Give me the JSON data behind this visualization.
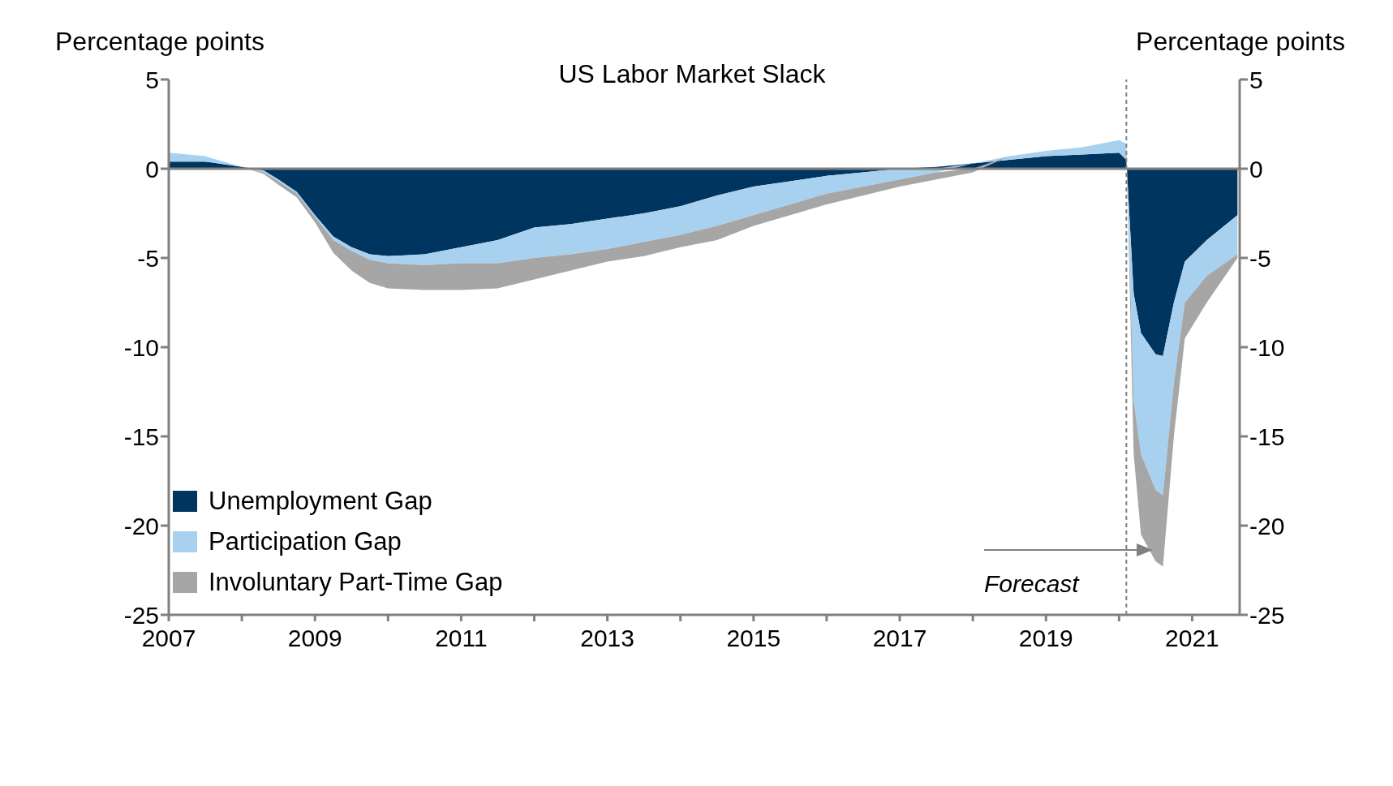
{
  "chart_data": {
    "type": "area",
    "title": "US Labor Market Slack",
    "ylabel": "Percentage points",
    "y2label": "Percentage points",
    "x": [
      2007,
      2007.5,
      2008,
      2008.3,
      2008.5,
      2008.75,
      2009,
      2009.25,
      2009.5,
      2009.75,
      2010,
      2010.5,
      2011,
      2011.5,
      2012,
      2012.5,
      2013,
      2013.5,
      2014,
      2014.5,
      2015,
      2015.5,
      2016,
      2016.5,
      2017,
      2017.5,
      2018,
      2018.5,
      2019,
      2019.5,
      2020,
      2020.1,
      2020.2,
      2020.3,
      2020.5,
      2020.6,
      2020.75,
      2020.9,
      2021.2,
      2021.62
    ],
    "series": [
      {
        "name": "Unemployment Gap",
        "color": "#003560",
        "values": [
          0.4,
          0.4,
          0.1,
          -0.1,
          -0.6,
          -1.3,
          -2.6,
          -3.8,
          -4.4,
          -4.8,
          -4.9,
          -4.8,
          -4.4,
          -4.0,
          -3.3,
          -3.1,
          -2.8,
          -2.5,
          -2.1,
          -1.5,
          -1.0,
          -0.7,
          -0.4,
          -0.2,
          0,
          0.1,
          0.3,
          0.5,
          0.7,
          0.8,
          0.9,
          0.5,
          -7,
          -9.2,
          -10.4,
          -10.5,
          -7.5,
          -5.2,
          -4,
          -2.6
        ]
      },
      {
        "name": "Participation Gap",
        "color": "#a8d1f0",
        "values": [
          0.5,
          0.3,
          0,
          -0.1,
          -0.1,
          -0.1,
          -0.1,
          -0.2,
          -0.2,
          -0.3,
          -0.4,
          -0.6,
          -0.9,
          -1.3,
          -1.7,
          -1.7,
          -1.7,
          -1.6,
          -1.6,
          -1.7,
          -1.6,
          -1.3,
          -1.0,
          -0.8,
          -0.6,
          -0.2,
          0,
          0.2,
          0.3,
          0.4,
          0.7,
          0.9,
          -6,
          -6.8,
          -7.6,
          -7.8,
          -4.5,
          -2.3,
          -2,
          -2.2
        ]
      },
      {
        "name": "Involuntary Part-Time Gap",
        "color": "#a6a6a6",
        "values": [
          0,
          0,
          0,
          -0.1,
          -0.2,
          -0.2,
          -0.3,
          -0.7,
          -1.1,
          -1.3,
          -1.4,
          -1.4,
          -1.5,
          -1.4,
          -1.2,
          -0.9,
          -0.7,
          -0.8,
          -0.7,
          -0.8,
          -0.6,
          -0.6,
          -0.6,
          -0.5,
          -0.4,
          -0.4,
          -0.2,
          0,
          0,
          0,
          0,
          0,
          -3,
          -4.5,
          -4,
          -4,
          -3,
          -2,
          -1.5,
          -0.2
        ]
      }
    ],
    "stacked": true,
    "xlim": [
      2007,
      2021.65
    ],
    "xticks": [
      2007,
      {
        "value": 2008,
        "label": null
      },
      2009,
      {
        "value": 2010,
        "label": null
      },
      2011,
      {
        "value": 2012,
        "label": null
      },
      2013,
      {
        "value": 2014,
        "label": null
      },
      2015,
      {
        "value": 2016,
        "label": null
      },
      2017,
      {
        "value": 2018,
        "label": null
      },
      2019,
      {
        "value": 2020,
        "label": null
      },
      2021
    ],
    "ylim": [
      -25,
      5
    ],
    "yticks": [
      -25,
      -20,
      -15,
      -10,
      -5,
      0,
      5
    ],
    "y2lim": [
      -25,
      5
    ],
    "y2ticks": [
      -25,
      -20,
      -15,
      -10,
      -5,
      0,
      5
    ],
    "ref_lines": [
      {
        "axis": "y",
        "value": 0,
        "color": "#808080",
        "line_style": "solid"
      },
      {
        "axis": "x",
        "value": 2020.1,
        "color": "#808080",
        "line_style": "dashed"
      }
    ],
    "annotations": [
      "Forecast"
    ],
    "legend": "bottom left",
    "grid": false
  }
}
